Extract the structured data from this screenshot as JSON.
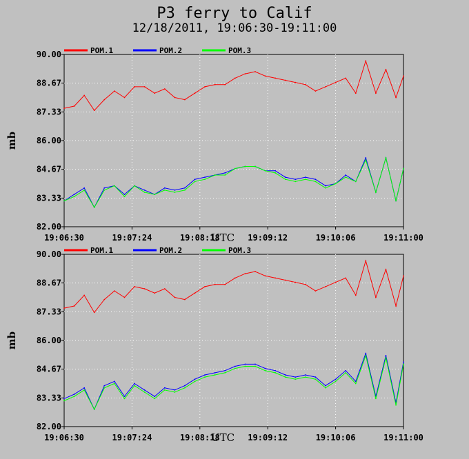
{
  "title": "P3 ferry to Calif",
  "subtitle": "12/18/2011, 19:06:30-19:11:00",
  "colors": {
    "background": "#c0c0c0",
    "plot_frame": "#000000",
    "gridline": "#ffffff",
    "POM.1": "#ff0000",
    "POM.2": "#0000ff",
    "POM.3": "#00ff00"
  },
  "chart_data": [
    {
      "type": "line",
      "ylabel": "mb",
      "xlabel": "UTC",
      "ylim": [
        82.0,
        90.0
      ],
      "xlim": [
        "19:06:30",
        "19:11:00"
      ],
      "yticks": [
        "90.00",
        "88.67",
        "87.33",
        "86.00",
        "84.67",
        "83.33",
        "82.00"
      ],
      "xticks": [
        "19:06:30",
        "19:07:24",
        "19:08:18",
        "19:09:12",
        "19:10:06",
        "19:11:00"
      ],
      "grid": true,
      "legend_position": "top-left",
      "x": [
        "19:06:30",
        "19:06:38",
        "19:06:46",
        "19:06:54",
        "19:07:02",
        "19:07:10",
        "19:07:18",
        "19:07:26",
        "19:07:34",
        "19:07:42",
        "19:07:50",
        "19:07:58",
        "19:08:06",
        "19:08:14",
        "19:08:22",
        "19:08:30",
        "19:08:38",
        "19:08:46",
        "19:08:54",
        "19:09:02",
        "19:09:10",
        "19:09:18",
        "19:09:26",
        "19:09:34",
        "19:09:42",
        "19:09:50",
        "19:09:58",
        "19:10:06",
        "19:10:14",
        "19:10:22",
        "19:10:30",
        "19:10:38",
        "19:10:46",
        "19:10:54",
        "19:11:00"
      ],
      "series": [
        {
          "name": "POM.1",
          "values": [
            87.5,
            87.6,
            88.1,
            87.4,
            87.9,
            88.3,
            88.0,
            88.5,
            88.5,
            88.2,
            88.4,
            88.0,
            87.9,
            88.2,
            88.5,
            88.6,
            88.6,
            88.9,
            89.1,
            89.2,
            89.0,
            88.9,
            88.8,
            88.7,
            88.6,
            88.3,
            88.5,
            88.7,
            88.9,
            88.2,
            89.7,
            88.2,
            89.3,
            88.0,
            89.0
          ]
        },
        {
          "name": "POM.2",
          "values": [
            83.2,
            83.5,
            83.8,
            82.9,
            83.8,
            83.9,
            83.5,
            83.9,
            83.7,
            83.5,
            83.8,
            83.7,
            83.8,
            84.2,
            84.3,
            84.4,
            84.5,
            84.7,
            84.8,
            84.8,
            84.6,
            84.6,
            84.3,
            84.2,
            84.3,
            84.2,
            83.9,
            84.0,
            84.4,
            84.1,
            85.2,
            83.6,
            85.2,
            83.2,
            84.7
          ]
        },
        {
          "name": "POM.3",
          "values": [
            83.2,
            83.4,
            83.7,
            82.9,
            83.7,
            83.9,
            83.4,
            83.9,
            83.6,
            83.5,
            83.7,
            83.6,
            83.7,
            84.1,
            84.2,
            84.4,
            84.4,
            84.7,
            84.8,
            84.8,
            84.6,
            84.5,
            84.2,
            84.1,
            84.2,
            84.1,
            83.8,
            84.0,
            84.3,
            84.1,
            85.1,
            83.6,
            85.2,
            83.2,
            84.7
          ]
        }
      ]
    },
    {
      "type": "line",
      "ylabel": "mb",
      "xlabel": "UTC",
      "ylim": [
        82.0,
        90.0
      ],
      "xlim": [
        "19:06:30",
        "19:11:00"
      ],
      "yticks": [
        "90.00",
        "88.67",
        "87.33",
        "86.00",
        "84.67",
        "83.33",
        "82.00"
      ],
      "xticks": [
        "19:06:30",
        "19:07:24",
        "19:08:18",
        "19:09:12",
        "19:10:06",
        "19:11:00"
      ],
      "grid": true,
      "legend_position": "top-left",
      "x": [
        "19:06:30",
        "19:06:38",
        "19:06:46",
        "19:06:54",
        "19:07:02",
        "19:07:10",
        "19:07:18",
        "19:07:26",
        "19:07:34",
        "19:07:42",
        "19:07:50",
        "19:07:58",
        "19:08:06",
        "19:08:14",
        "19:08:22",
        "19:08:30",
        "19:08:38",
        "19:08:46",
        "19:08:54",
        "19:09:02",
        "19:09:10",
        "19:09:18",
        "19:09:26",
        "19:09:34",
        "19:09:42",
        "19:09:50",
        "19:09:58",
        "19:10:06",
        "19:10:14",
        "19:10:22",
        "19:10:30",
        "19:10:38",
        "19:10:46",
        "19:10:54",
        "19:11:00"
      ],
      "series": [
        {
          "name": "POM.1",
          "values": [
            87.5,
            87.6,
            88.1,
            87.3,
            87.9,
            88.3,
            88.0,
            88.5,
            88.4,
            88.2,
            88.4,
            88.0,
            87.9,
            88.2,
            88.5,
            88.6,
            88.6,
            88.9,
            89.1,
            89.2,
            89.0,
            88.9,
            88.8,
            88.7,
            88.6,
            88.3,
            88.5,
            88.7,
            88.9,
            88.1,
            89.7,
            88.0,
            89.3,
            87.6,
            89.0
          ]
        },
        {
          "name": "POM.2",
          "values": [
            83.3,
            83.5,
            83.8,
            82.8,
            83.9,
            84.1,
            83.4,
            84.0,
            83.7,
            83.4,
            83.8,
            83.7,
            83.9,
            84.2,
            84.4,
            84.5,
            84.6,
            84.8,
            84.9,
            84.9,
            84.7,
            84.6,
            84.4,
            84.3,
            84.4,
            84.3,
            83.9,
            84.2,
            84.6,
            84.1,
            85.4,
            83.4,
            85.3,
            83.1,
            85.0
          ]
        },
        {
          "name": "POM.3",
          "values": [
            83.2,
            83.4,
            83.7,
            82.8,
            83.8,
            84.0,
            83.3,
            83.9,
            83.6,
            83.3,
            83.7,
            83.6,
            83.8,
            84.1,
            84.3,
            84.4,
            84.5,
            84.7,
            84.8,
            84.8,
            84.6,
            84.5,
            84.3,
            84.2,
            84.3,
            84.2,
            83.8,
            84.1,
            84.5,
            84.0,
            85.3,
            83.3,
            85.2,
            83.0,
            84.9
          ]
        }
      ]
    }
  ]
}
